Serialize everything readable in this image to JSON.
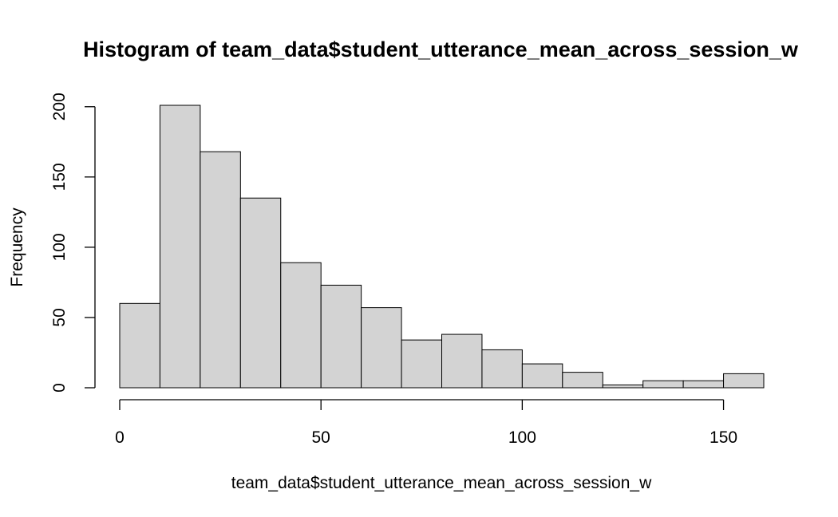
{
  "chart_data": {
    "type": "bar",
    "subtype": "histogram",
    "title": "Histogram of team_data$student_utterance_mean_across_session_w",
    "xlabel": "team_data$student_utterance_mean_across_session_w",
    "ylabel": "Frequency",
    "bins": [
      {
        "start": 0,
        "end": 10,
        "count": 60
      },
      {
        "start": 10,
        "end": 20,
        "count": 201
      },
      {
        "start": 20,
        "end": 30,
        "count": 168
      },
      {
        "start": 30,
        "end": 40,
        "count": 135
      },
      {
        "start": 40,
        "end": 50,
        "count": 89
      },
      {
        "start": 50,
        "end": 60,
        "count": 73
      },
      {
        "start": 60,
        "end": 70,
        "count": 57
      },
      {
        "start": 70,
        "end": 80,
        "count": 34
      },
      {
        "start": 80,
        "end": 90,
        "count": 38
      },
      {
        "start": 90,
        "end": 100,
        "count": 27
      },
      {
        "start": 100,
        "end": 110,
        "count": 17
      },
      {
        "start": 110,
        "end": 120,
        "count": 11
      },
      {
        "start": 120,
        "end": 130,
        "count": 2
      },
      {
        "start": 130,
        "end": 140,
        "count": 5
      },
      {
        "start": 140,
        "end": 150,
        "count": 5
      },
      {
        "start": 150,
        "end": 160,
        "count": 10
      }
    ],
    "xlim": [
      0,
      160
    ],
    "ylim": [
      0,
      201
    ],
    "x_ticks": [
      "0",
      "50",
      "100",
      "150"
    ],
    "y_ticks": [
      "0",
      "50",
      "100",
      "150",
      "200"
    ],
    "bar_color": "#d3d3d3",
    "bar_border_color": "#000000",
    "grid": false,
    "legend": "none"
  }
}
